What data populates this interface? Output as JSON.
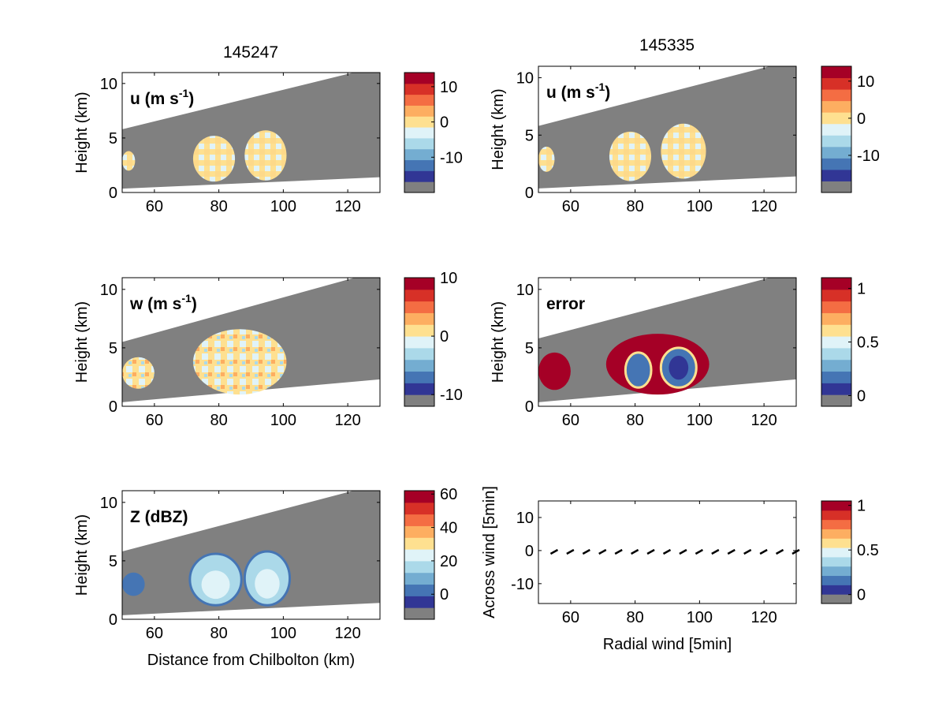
{
  "colors": {
    "scale": [
      "#313695",
      "#4575b4",
      "#74add1",
      "#abd9e9",
      "#e0f3f8",
      "#fee090",
      "#fdae61",
      "#f46d43",
      "#d73027",
      "#a50026"
    ],
    "missing": "#808080",
    "background": "#ffffff"
  },
  "columns": {
    "left_title": "145247",
    "right_title": "145335"
  },
  "chart_data": [
    {
      "type": "heatmap",
      "id": "u-left",
      "label": "u (m s",
      "label_sup": "-1",
      "label_end": ")",
      "ylabel": "Height (km)",
      "xlabel": "",
      "xlim": [
        50,
        130
      ],
      "ylim": [
        0,
        11
      ],
      "xticks": [
        "60",
        "80",
        "100",
        "120"
      ],
      "yticks": [
        "0",
        "5",
        "10"
      ],
      "colorbar": {
        "levels": 10,
        "range": [
          -20,
          14
        ],
        "ticks": [
          "10",
          "0",
          "-10"
        ],
        "tick_values": [
          10,
          0,
          -10
        ]
      },
      "blobs": [
        {
          "x": [
            50,
            54
          ],
          "z": [
            2.0,
            3.8
          ],
          "level": "mixed-warm"
        },
        {
          "x": [
            72,
            85
          ],
          "z": [
            1.0,
            5.2
          ],
          "level": "mixed-warm"
        },
        {
          "x": [
            88,
            101
          ],
          "z": [
            1.1,
            5.7
          ],
          "level": "mixed-warm"
        }
      ]
    },
    {
      "type": "heatmap",
      "id": "u-right",
      "label": "u (m s",
      "label_sup": "-1",
      "label_end": ")",
      "ylabel": "Height (km)",
      "xlabel": "",
      "xlim": [
        50,
        130
      ],
      "ylim": [
        0,
        11
      ],
      "xticks": [
        "60",
        "80",
        "100",
        "120"
      ],
      "yticks": [
        "0",
        "5",
        "10"
      ],
      "colorbar": {
        "levels": 10,
        "range": [
          -20,
          14
        ],
        "ticks": [
          "10",
          "0",
          "-10"
        ],
        "tick_values": [
          10,
          0,
          -10
        ]
      },
      "blobs": [
        {
          "x": [
            50,
            55
          ],
          "z": [
            1.8,
            4.0
          ],
          "level": "mixed-warm"
        },
        {
          "x": [
            72,
            85
          ],
          "z": [
            1.0,
            5.3
          ],
          "level": "mixed-warm"
        },
        {
          "x": [
            88,
            102
          ],
          "z": [
            1.2,
            6.0
          ],
          "level": "mixed-warm"
        }
      ]
    },
    {
      "type": "heatmap",
      "id": "w-left",
      "label": "w (m s",
      "label_sup": "-1",
      "label_end": ")",
      "ylabel": "Height (km)",
      "xlabel": "",
      "xlim": [
        50,
        130
      ],
      "ylim": [
        0,
        11
      ],
      "xticks": [
        "60",
        "80",
        "100",
        "120"
      ],
      "yticks": [
        "0",
        "5",
        "10"
      ],
      "colorbar": {
        "levels": 10,
        "range": [
          -12,
          10
        ],
        "ticks": [
          "10",
          "0",
          "-10"
        ],
        "tick_values": [
          10,
          0,
          -10
        ]
      },
      "blobs": [
        {
          "x": [
            50,
            60
          ],
          "z": [
            1.5,
            4.2
          ],
          "level": "mixed"
        },
        {
          "x": [
            72,
            101
          ],
          "z": [
            1.0,
            6.6
          ],
          "level": "mixed"
        }
      ]
    },
    {
      "type": "heatmap",
      "id": "error-right",
      "label": "error",
      "label_sup": "",
      "label_end": "",
      "ylabel": "Height (km)",
      "xlabel": "",
      "xlim": [
        50,
        130
      ],
      "ylim": [
        0,
        11
      ],
      "xticks": [
        "60",
        "80",
        "100",
        "120"
      ],
      "yticks": [
        "0",
        "5",
        "10"
      ],
      "colorbar": {
        "levels": 10,
        "range": [
          -0.1,
          1.1
        ],
        "ticks": [
          "1",
          "0.5",
          "0"
        ],
        "tick_values": [
          1,
          0.5,
          0
        ]
      },
      "blobs": [
        {
          "x": [
            50,
            60
          ],
          "z": [
            1.4,
            4.6
          ],
          "level": "high"
        },
        {
          "x": [
            71,
            103
          ],
          "z": [
            1.0,
            6.2
          ],
          "level": "high"
        },
        {
          "x": [
            77,
            85
          ],
          "z": [
            1.6,
            4.6
          ],
          "level": "low"
        },
        {
          "x": [
            88,
            99
          ],
          "z": [
            1.6,
            5.0
          ],
          "level": "low"
        }
      ]
    },
    {
      "type": "heatmap",
      "id": "z-left",
      "label": "Z (dBZ)",
      "label_sup": "",
      "label_end": "",
      "ylabel": "Height (km)",
      "xlabel": "Distance from Chilbolton (km)",
      "xlim": [
        50,
        130
      ],
      "ylim": [
        0,
        11
      ],
      "xticks": [
        "60",
        "80",
        "100",
        "120"
      ],
      "yticks": [
        "0",
        "5",
        "10"
      ],
      "colorbar": {
        "levels": 10,
        "range": [
          -15,
          62
        ],
        "ticks": [
          "60",
          "40",
          "20",
          "0"
        ],
        "tick_values": [
          60,
          40,
          20,
          0
        ]
      },
      "blobs": [
        {
          "x": [
            50,
            57
          ],
          "z": [
            2.0,
            4.0
          ],
          "level": "low"
        },
        {
          "x": [
            71,
            87
          ],
          "z": [
            1.2,
            5.6
          ],
          "level": "mid"
        },
        {
          "x": [
            88,
            102
          ],
          "z": [
            1.2,
            5.8
          ],
          "level": "mid"
        }
      ]
    },
    {
      "type": "scatter",
      "id": "wind-right",
      "label": "",
      "label_sup": "",
      "label_end": "",
      "ylabel": "Across wind [5min]",
      "xlabel": "Radial wind [5min]",
      "xlim": [
        50,
        130
      ],
      "ylim": [
        -16,
        15
      ],
      "xticks": [
        "60",
        "80",
        "100",
        "120"
      ],
      "yticks": [
        "-10",
        "0",
        "10"
      ],
      "ytick_values": [
        -10,
        0,
        10
      ],
      "colorbar": {
        "levels": 10,
        "range": [
          -0.1,
          1.05
        ],
        "ticks": [
          "1",
          "0.5",
          "0"
        ],
        "tick_values": [
          1,
          0.5,
          0
        ]
      },
      "arrows_x": [
        55,
        60,
        65,
        70,
        75,
        80,
        85,
        90,
        95,
        100,
        105,
        110,
        115,
        120,
        125,
        130
      ],
      "arrows_y": [
        -0.5,
        -0.5,
        -0.5,
        -0.5,
        -0.5,
        -0.5,
        -0.5,
        -0.5,
        -0.5,
        -0.5,
        -0.5,
        -0.5,
        -0.5,
        -0.5,
        -0.5,
        -0.5
      ]
    }
  ]
}
